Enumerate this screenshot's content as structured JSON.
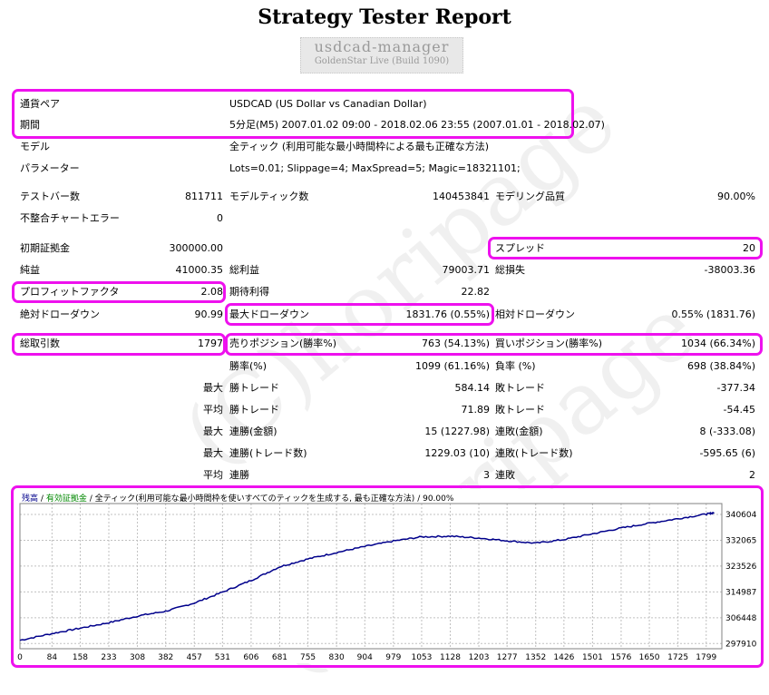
{
  "title": "Strategy Tester Report",
  "account": {
    "name": "usdcad-manager",
    "server": "GoldenStar Live (Build 1090)"
  },
  "watermark": "(C)horipage",
  "general": {
    "symbol_label": "通貨ペア",
    "symbol_value": "USDCAD (US Dollar vs Canadian Dollar)",
    "period_label": "期間",
    "period_value": "5分足(M5) 2007.01.02 09:00 - 2018.02.06 23:55 (2007.01.01 - 2018.02.07)",
    "model_label": "モデル",
    "model_value": "全ティック (利用可能な最小時間枠による最も正確な方法)",
    "params_label": "パラメーター",
    "params_value": "Lots=0.01; Slippage=4; MaxSpread=5; Magic=18321101;"
  },
  "row_bars": {
    "bars_label": "テストバー数",
    "bars_value": "811711",
    "ticks_label": "モデルティック数",
    "ticks_value": "140453841",
    "quality_label": "モデリング品質",
    "quality_value": "90.00%"
  },
  "row_errors": {
    "label": "不整合チャートエラー",
    "value": "0"
  },
  "row_deposit": {
    "deposit_label": "初期証拠金",
    "deposit_value": "300000.00",
    "spread_label": "スプレッド",
    "spread_value": "20"
  },
  "row_profit": {
    "net_label": "純益",
    "net_value": "41000.35",
    "gross_profit_label": "総利益",
    "gross_profit_value": "79003.71",
    "gross_loss_label": "総損失",
    "gross_loss_value": "-38003.36"
  },
  "row_factor": {
    "pf_label": "プロフィットファクタ",
    "pf_value": "2.08",
    "payoff_label": "期待利得",
    "payoff_value": "22.82"
  },
  "row_drawdown": {
    "abs_label": "絶対ドローダウン",
    "abs_value": "90.99",
    "max_label": "最大ドローダウン",
    "max_value": "1831.76 (0.55%)",
    "rel_label": "相対ドローダウン",
    "rel_value": "0.55% (1831.76)"
  },
  "row_trades": {
    "total_label": "総取引数",
    "total_value": "1797",
    "short_label": "売りポジション(勝率%)",
    "short_value": "763 (54.13%)",
    "long_label": "買いポジション(勝率%)",
    "long_value": "1034 (66.34%)"
  },
  "row_winrate": {
    "win_label": "勝率(%)",
    "win_value": "1099 (61.16%)",
    "loss_label": "負率 (%)",
    "loss_value": "698 (38.84%)"
  },
  "row_largest": {
    "prefix": "最大",
    "win_label": "勝トレード",
    "win_value": "584.14",
    "loss_label": "敗トレード",
    "loss_value": "-377.34"
  },
  "row_average": {
    "prefix": "平均",
    "win_label": "勝トレード",
    "win_value": "71.89",
    "loss_label": "敗トレード",
    "loss_value": "-54.45"
  },
  "row_consec_money": {
    "prefix": "最大",
    "win_label": "連勝(金額)",
    "win_value": "15 (1227.98)",
    "loss_label": "連敗(金額)",
    "loss_value": "8 (-333.08)"
  },
  "row_consec_trades": {
    "prefix": "最大",
    "win_label": "連勝(トレード数)",
    "win_value": "1229.03 (10)",
    "loss_label": "連敗(トレード数)",
    "loss_value": "-595.65 (6)"
  },
  "row_consec_avg": {
    "prefix": "平均",
    "win_label": "連勝",
    "win_value": "3",
    "loss_label": "連敗",
    "loss_value": "2"
  },
  "chart_data": {
    "type": "line",
    "legend": {
      "balance": "残高",
      "sep": "/",
      "equity": "有効証拠金",
      "model": "全ティック(利用可能な最小時間枠を使いすべてのティックを生成する, 最も正確な方法)",
      "quality": "90.00%"
    },
    "x_ticks": [
      0,
      84,
      158,
      233,
      308,
      382,
      457,
      531,
      606,
      681,
      755,
      830,
      904,
      979,
      1053,
      1128,
      1203,
      1277,
      1352,
      1426,
      1501,
      1576,
      1650,
      1725,
      1799
    ],
    "y_ticks": [
      297910,
      306448,
      314987,
      323526,
      332065,
      340604
    ],
    "xlim": [
      0,
      1840
    ],
    "ylim": [
      296200,
      344200
    ],
    "x": [
      0,
      84,
      158,
      233,
      308,
      382,
      457,
      531,
      606,
      681,
      755,
      830,
      904,
      979,
      1053,
      1128,
      1203,
      1277,
      1352,
      1426,
      1501,
      1576,
      1650,
      1725,
      1799,
      1820
    ],
    "y": [
      299000,
      301200,
      303000,
      304800,
      307000,
      308600,
      311300,
      314900,
      318800,
      323300,
      325900,
      328000,
      330000,
      331800,
      333200,
      333400,
      332800,
      331900,
      331100,
      332300,
      334200,
      336100,
      337700,
      339200,
      340700,
      341200
    ],
    "colors": {
      "balance": "#00008b",
      "equity": "#008800",
      "grid": "#c0c0c0"
    }
  }
}
